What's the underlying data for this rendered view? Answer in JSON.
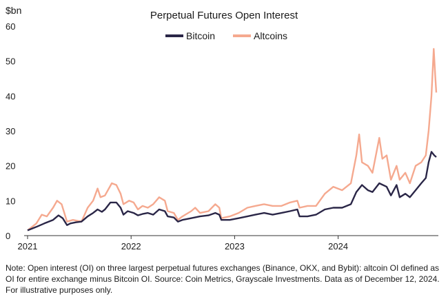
{
  "chart_data": {
    "type": "line",
    "title": "Perpetual Futures Open Interest",
    "ylabel": "$bn",
    "xlabel": "",
    "ylim": [
      0,
      60
    ],
    "yticks": [
      0,
      10,
      20,
      30,
      40,
      50,
      60
    ],
    "xlim": [
      "2021-01-01",
      "2024-12-12"
    ],
    "xticks": [
      "2021",
      "2022",
      "2023",
      "2024"
    ],
    "grid": false,
    "legend_position": "top-center",
    "series": [
      {
        "name": "Bitcoin",
        "color": "#2a2647",
        "points": [
          [
            "2021-01-01",
            1.5
          ],
          [
            "2021-02-01",
            2.5
          ],
          [
            "2021-03-01",
            3.5
          ],
          [
            "2021-04-01",
            4.5
          ],
          [
            "2021-04-20",
            5.8
          ],
          [
            "2021-05-05",
            5.0
          ],
          [
            "2021-05-20",
            3.0
          ],
          [
            "2021-06-01",
            3.5
          ],
          [
            "2021-06-20",
            3.8
          ],
          [
            "2021-07-10",
            4.0
          ],
          [
            "2021-08-01",
            5.5
          ],
          [
            "2021-08-20",
            6.5
          ],
          [
            "2021-09-05",
            7.5
          ],
          [
            "2021-09-20",
            6.8
          ],
          [
            "2021-10-01",
            7.5
          ],
          [
            "2021-10-20",
            9.5
          ],
          [
            "2021-11-10",
            9.5
          ],
          [
            "2021-11-25",
            8.0
          ],
          [
            "2021-12-05",
            6.0
          ],
          [
            "2021-12-20",
            7.0
          ],
          [
            "2022-01-10",
            6.5
          ],
          [
            "2022-01-25",
            5.8
          ],
          [
            "2022-02-10",
            6.2
          ],
          [
            "2022-03-01",
            6.5
          ],
          [
            "2022-03-20",
            6.0
          ],
          [
            "2022-04-10",
            7.5
          ],
          [
            "2022-04-30",
            7.0
          ],
          [
            "2022-05-10",
            5.5
          ],
          [
            "2022-06-01",
            5.2
          ],
          [
            "2022-06-15",
            4.0
          ],
          [
            "2022-07-01",
            4.5
          ],
          [
            "2022-08-01",
            5.0
          ],
          [
            "2022-09-01",
            5.5
          ],
          [
            "2022-10-01",
            5.8
          ],
          [
            "2022-10-25",
            6.5
          ],
          [
            "2022-11-08",
            6.0
          ],
          [
            "2022-11-15",
            4.5
          ],
          [
            "2022-12-15",
            4.5
          ],
          [
            "2023-01-15",
            5.0
          ],
          [
            "2023-02-15",
            5.5
          ],
          [
            "2023-03-15",
            6.0
          ],
          [
            "2023-04-15",
            6.5
          ],
          [
            "2023-05-15",
            6.0
          ],
          [
            "2023-06-15",
            6.5
          ],
          [
            "2023-07-15",
            7.0
          ],
          [
            "2023-08-10",
            7.5
          ],
          [
            "2023-08-18",
            5.5
          ],
          [
            "2023-09-15",
            5.5
          ],
          [
            "2023-10-15",
            6.0
          ],
          [
            "2023-11-15",
            7.5
          ],
          [
            "2023-12-15",
            8.0
          ],
          [
            "2024-01-15",
            8.0
          ],
          [
            "2024-02-15",
            9.0
          ],
          [
            "2024-03-05",
            12.5
          ],
          [
            "2024-03-25",
            14.5
          ],
          [
            "2024-04-15",
            13.0
          ],
          [
            "2024-05-01",
            12.5
          ],
          [
            "2024-05-25",
            15.0
          ],
          [
            "2024-06-20",
            14.0
          ],
          [
            "2024-07-05",
            11.5
          ],
          [
            "2024-07-25",
            14.5
          ],
          [
            "2024-08-05",
            11.0
          ],
          [
            "2024-08-25",
            12.0
          ],
          [
            "2024-09-10",
            11.0
          ],
          [
            "2024-09-30",
            13.0
          ],
          [
            "2024-10-20",
            15.0
          ],
          [
            "2024-11-05",
            16.5
          ],
          [
            "2024-11-15",
            21.0
          ],
          [
            "2024-11-25",
            24.0
          ],
          [
            "2024-12-05",
            23.0
          ],
          [
            "2024-12-12",
            22.5
          ]
        ]
      },
      {
        "name": "Altcoins",
        "color": "#f5a98f",
        "points": [
          [
            "2021-01-01",
            1.5
          ],
          [
            "2021-02-01",
            3.5
          ],
          [
            "2021-02-20",
            6.0
          ],
          [
            "2021-03-10",
            5.5
          ],
          [
            "2021-04-01",
            8.0
          ],
          [
            "2021-04-15",
            10.0
          ],
          [
            "2021-05-01",
            9.0
          ],
          [
            "2021-05-20",
            4.0
          ],
          [
            "2021-06-10",
            4.5
          ],
          [
            "2021-07-10",
            4.0
          ],
          [
            "2021-08-01",
            8.0
          ],
          [
            "2021-08-20",
            10.0
          ],
          [
            "2021-09-05",
            13.5
          ],
          [
            "2021-09-15",
            11.0
          ],
          [
            "2021-10-01",
            11.5
          ],
          [
            "2021-10-25",
            15.0
          ],
          [
            "2021-11-10",
            14.5
          ],
          [
            "2021-11-25",
            12.0
          ],
          [
            "2021-12-05",
            9.0
          ],
          [
            "2021-12-25",
            10.0
          ],
          [
            "2022-01-10",
            9.5
          ],
          [
            "2022-01-25",
            7.5
          ],
          [
            "2022-02-10",
            8.5
          ],
          [
            "2022-03-01",
            8.0
          ],
          [
            "2022-03-20",
            9.0
          ],
          [
            "2022-04-10",
            11.0
          ],
          [
            "2022-04-30",
            10.0
          ],
          [
            "2022-05-10",
            7.0
          ],
          [
            "2022-06-01",
            6.5
          ],
          [
            "2022-06-15",
            4.5
          ],
          [
            "2022-07-01",
            5.5
          ],
          [
            "2022-08-01",
            7.0
          ],
          [
            "2022-08-15",
            8.0
          ],
          [
            "2022-09-01",
            6.5
          ],
          [
            "2022-10-01",
            7.0
          ],
          [
            "2022-10-25",
            9.0
          ],
          [
            "2022-11-08",
            8.0
          ],
          [
            "2022-11-15",
            5.0
          ],
          [
            "2022-12-15",
            5.5
          ],
          [
            "2023-01-15",
            6.5
          ],
          [
            "2023-02-15",
            8.0
          ],
          [
            "2023-03-15",
            8.5
          ],
          [
            "2023-04-15",
            9.0
          ],
          [
            "2023-05-15",
            8.5
          ],
          [
            "2023-06-15",
            8.5
          ],
          [
            "2023-07-15",
            9.5
          ],
          [
            "2023-08-10",
            10.0
          ],
          [
            "2023-08-18",
            8.0
          ],
          [
            "2023-09-15",
            8.5
          ],
          [
            "2023-10-15",
            8.5
          ],
          [
            "2023-11-15",
            12.0
          ],
          [
            "2023-12-15",
            14.0
          ],
          [
            "2024-01-15",
            13.0
          ],
          [
            "2024-02-15",
            15.0
          ],
          [
            "2024-03-05",
            23.0
          ],
          [
            "2024-03-15",
            29.0
          ],
          [
            "2024-03-25",
            21.0
          ],
          [
            "2024-04-15",
            20.0
          ],
          [
            "2024-05-01",
            18.0
          ],
          [
            "2024-05-25",
            28.0
          ],
          [
            "2024-06-05",
            22.0
          ],
          [
            "2024-06-20",
            23.0
          ],
          [
            "2024-07-05",
            16.0
          ],
          [
            "2024-07-25",
            20.0
          ],
          [
            "2024-08-05",
            16.0
          ],
          [
            "2024-08-25",
            18.0
          ],
          [
            "2024-09-10",
            15.0
          ],
          [
            "2024-09-30",
            20.0
          ],
          [
            "2024-10-20",
            21.0
          ],
          [
            "2024-11-05",
            23.0
          ],
          [
            "2024-11-15",
            30.0
          ],
          [
            "2024-11-25",
            40.0
          ],
          [
            "2024-12-03",
            53.5
          ],
          [
            "2024-12-08",
            46.0
          ],
          [
            "2024-12-12",
            41.0
          ]
        ]
      }
    ]
  },
  "note": "Note: Open interest (OI) on three largest perpetual futures exchanges (Binance, OKX, and Bybit): altcoin OI defined as OI for entire exchange minus Bitcoin OI. Source: Coin Metrics, Grayscale Investments. Data as of December 12, 2024. For illustrative purposes only."
}
